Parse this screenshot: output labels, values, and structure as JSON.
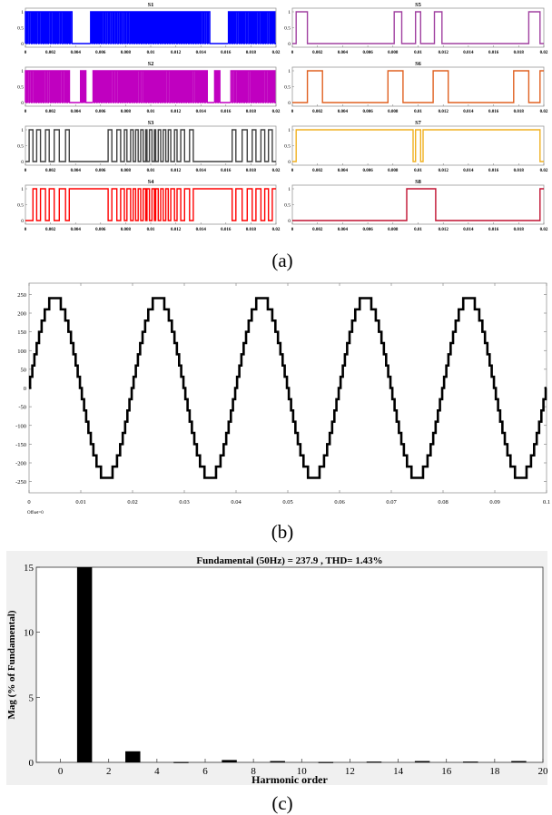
{
  "figure": {
    "captions": [
      "(a)",
      "(b)",
      "(c)"
    ]
  },
  "chart_data": [
    {
      "type": "line",
      "panel": "a",
      "layout": "4x2 grid of switching-signal subplots",
      "xlim": [
        0,
        0.02
      ],
      "x_ticks": [
        "0",
        "0.002",
        "0.004",
        "0.006",
        "0.008",
        "0.01",
        "0.012",
        "0.014",
        "0.016",
        "0.018",
        "0.02"
      ],
      "ylim": [
        0,
        1
      ],
      "y_ticks": [
        "0",
        "0.5",
        "1"
      ],
      "series": [
        {
          "name": "S1",
          "color": "#0000ff",
          "mode": "pwm",
          "segments": [
            [
              0,
              0.0038,
              1
            ],
            [
              0.0038,
              0.0052,
              0
            ],
            [
              0.0052,
              0.0148,
              1
            ],
            [
              0.0148,
              0.0162,
              0
            ],
            [
              0.0162,
              0.02,
              1
            ]
          ]
        },
        {
          "name": "S2",
          "color": "#c000c0",
          "mode": "pwm",
          "segments": [
            [
              0,
              0.0036,
              1
            ],
            [
              0.0036,
              0.0044,
              0
            ],
            [
              0.0044,
              0.0049,
              1
            ],
            [
              0.0049,
              0.0054,
              0
            ],
            [
              0.0054,
              0.0146,
              1
            ],
            [
              0.0146,
              0.0151,
              0
            ],
            [
              0.0151,
              0.0156,
              1
            ],
            [
              0.0156,
              0.0164,
              0
            ],
            [
              0.0164,
              0.02,
              1
            ]
          ]
        },
        {
          "name": "S3",
          "color": "#404040",
          "mode": "edges",
          "edges": [
            0.0003,
            0.0006,
            0.0009,
            0.0012,
            0.0016,
            0.0019,
            0.0023,
            0.0027,
            0.0032,
            0.0035,
            0.0066,
            0.0069,
            0.0073,
            0.0076,
            0.0079,
            0.0081,
            0.0084,
            0.0086,
            0.0088,
            0.009,
            0.0092,
            0.0094,
            0.0096,
            0.0097,
            0.0099,
            0.0101,
            0.0103,
            0.0104,
            0.0106,
            0.0108,
            0.011,
            0.0112,
            0.0114,
            0.0116,
            0.0119,
            0.0121,
            0.0124,
            0.0127,
            0.0131,
            0.0134,
            0.0165,
            0.0168,
            0.0173,
            0.0177,
            0.0181,
            0.0184,
            0.0188,
            0.0191,
            0.0194,
            0.0197
          ],
          "start_level": 1
        },
        {
          "name": "S4",
          "color": "#ff0000",
          "mode": "edges",
          "edges": [
            0.0003,
            0.0006,
            0.0009,
            0.0012,
            0.0016,
            0.0019,
            0.0023,
            0.0027,
            0.0032,
            0.0035,
            0.0066,
            0.0069,
            0.0073,
            0.0076,
            0.0079,
            0.0081,
            0.0084,
            0.0086,
            0.0088,
            0.009,
            0.0092,
            0.0094,
            0.0096,
            0.0097,
            0.0099,
            0.0101,
            0.0103,
            0.0104,
            0.0106,
            0.0108,
            0.011,
            0.0112,
            0.0114,
            0.0116,
            0.0119,
            0.0121,
            0.0124,
            0.0127,
            0.0131,
            0.0134,
            0.0165,
            0.0168,
            0.0173,
            0.0177,
            0.0181,
            0.0184,
            0.0188,
            0.0191,
            0.0194,
            0.0197
          ],
          "start_level": 0
        },
        {
          "name": "S5",
          "color": "#a040a0",
          "mode": "edges",
          "edges": [
            0.0003,
            0.0012,
            0.0081,
            0.0087,
            0.0098,
            0.0102,
            0.0113,
            0.0119,
            0.0188,
            0.0197
          ],
          "start_level": 1
        },
        {
          "name": "S6",
          "color": "#e06020",
          "mode": "edges",
          "edges": [
            0.0003,
            0.0012,
            0.0024,
            0.0076,
            0.0088,
            0.0112,
            0.0124,
            0.0176,
            0.0188,
            0.0197
          ],
          "start_level": 0
        },
        {
          "name": "S7",
          "color": "#f0b020",
          "mode": "edges",
          "edges": [
            0.0003,
            0.0096,
            0.0098,
            0.0102,
            0.0104,
            0.0197
          ],
          "start_level": 1
        },
        {
          "name": "S8",
          "color": "#c01030",
          "mode": "edges",
          "edges": [
            0.0003,
            0.0091,
            0.0114,
            0.0197
          ],
          "start_level": 0
        }
      ]
    },
    {
      "type": "line",
      "panel": "b",
      "xlim": [
        0,
        0.1
      ],
      "x_ticks": [
        "0",
        "0.01",
        "0.02",
        "0.03",
        "0.04",
        "0.05",
        "0.06",
        "0.07",
        "0.08",
        "0.09",
        "0.1"
      ],
      "ylim": [
        -280,
        280
      ],
      "y_ticks": [
        "250",
        "200",
        "150",
        "100",
        "50",
        "0",
        "-50",
        "-100",
        "-150",
        "-200",
        "-250"
      ],
      "series": [
        {
          "name": "",
          "color": "#000000",
          "waveform": "staircase sine",
          "amplitude": 240,
          "frequency_hz": 50,
          "levels": 17
        }
      ],
      "footnote": "Offset=0"
    },
    {
      "type": "bar",
      "panel": "c",
      "title": "Fundamental (50Hz) = 237.9 , THD= 1.43%",
      "xlabel": "Harmonic order",
      "ylabel": "Mag (% of Fundamental)",
      "xlim": [
        -1,
        20
      ],
      "ylim": [
        0,
        15
      ],
      "x_ticks": [
        "0",
        "2",
        "4",
        "6",
        "8",
        "10",
        "12",
        "14",
        "16",
        "18",
        "20"
      ],
      "y_ticks": [
        "0",
        "5",
        "10",
        "15"
      ],
      "x": [
        1,
        3,
        5,
        7,
        9,
        11,
        13,
        15,
        17,
        19
      ],
      "values": [
        15,
        0.85,
        0.03,
        0.18,
        0.1,
        0.03,
        0.06,
        0.1,
        0.06,
        0.1
      ],
      "color": "#000000"
    }
  ]
}
